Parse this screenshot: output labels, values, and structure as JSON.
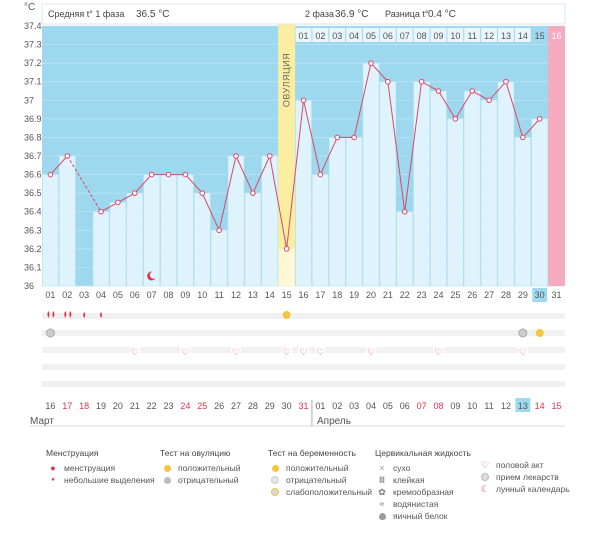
{
  "chart_data": {
    "type": "line",
    "ylabel": "°C",
    "ylim": [
      36.0,
      37.4
    ],
    "y_ticks": [
      "36",
      "36.1",
      "36.2",
      "36.3",
      "36.4",
      "36.5",
      "36.6",
      "36.7",
      "36.8",
      "36.9",
      "37",
      "37.1",
      "37.2",
      "37.3",
      "37.4"
    ],
    "cycle_days": [
      "01",
      "02",
      "03",
      "04",
      "05",
      "06",
      "07",
      "08",
      "09",
      "10",
      "11",
      "12",
      "13",
      "14",
      "15",
      "16",
      "17",
      "18",
      "19",
      "20",
      "21",
      "22",
      "23",
      "24",
      "25",
      "26",
      "27",
      "28",
      "29",
      "30",
      "31"
    ],
    "phase2_day_labels": [
      "01",
      "02",
      "03",
      "04",
      "05",
      "06",
      "07",
      "08",
      "09",
      "10",
      "11",
      "12",
      "13",
      "14",
      "15",
      "16"
    ],
    "calendar_dates": [
      "16",
      "17",
      "18",
      "19",
      "20",
      "21",
      "22",
      "23",
      "24",
      "25",
      "26",
      "27",
      "28",
      "29",
      "30",
      "31",
      "01",
      "02",
      "03",
      "04",
      "05",
      "06",
      "07",
      "08",
      "09",
      "10",
      "11",
      "12",
      "13",
      "14",
      "15"
    ],
    "weekend_dates_index": [
      1,
      2,
      8,
      9,
      15,
      22,
      23,
      29,
      30
    ],
    "temperatures": [
      36.6,
      36.7,
      null,
      36.4,
      36.45,
      36.5,
      36.6,
      36.6,
      36.6,
      36.5,
      36.3,
      36.7,
      36.5,
      36.7,
      36.2,
      37.0,
      36.6,
      36.8,
      36.8,
      37.2,
      37.1,
      36.4,
      37.1,
      37.05,
      36.9,
      37.05,
      37.0,
      37.1,
      36.8,
      36.9,
      null
    ],
    "dashed_gap": [
      1,
      3
    ],
    "ovulation_day_index": 14,
    "today_cycle_index": 29,
    "pink_day_index": 30,
    "month_labels": [
      "Март",
      "Апрель"
    ],
    "header": {
      "phase1_label": "Средняя t° 1 фаза",
      "phase1_value": "36.5 °C",
      "phase2_label": "2 фаза",
      "phase2_value": "36.9 °C",
      "diff_label": "Разница t°",
      "diff_value": "0.4 °C",
      "ovulation_label": "ОВУЛЯЦИЯ"
    },
    "markers": {
      "menstruation_heavy": [
        0,
        1
      ],
      "menstruation_light": [
        2,
        3
      ],
      "ovulation_positive": [
        14
      ],
      "ovulation_negative": [
        0,
        28
      ],
      "pregnancy_positive": [
        29
      ],
      "intercourse": [
        5,
        8,
        11,
        14,
        15,
        16,
        19,
        23,
        28
      ],
      "moon": [
        6
      ]
    },
    "colors": {
      "plot_bg": "#9ed8ee",
      "bar": "#dff3fc",
      "bar_edge": "#bfe6f5",
      "line": "#d9486a",
      "ovulation_band": "#fbeea0",
      "today": "#9fd9ef",
      "pink": "#f6aabd",
      "weekend_text": "#e0334d"
    }
  },
  "legend": {
    "menstruation": {
      "title": "Менструация",
      "items": [
        "менструация",
        "небольшие выделения"
      ]
    },
    "ovulation_test": {
      "title": "Тест на овуляцию",
      "items": [
        "положительный",
        "отрицательный"
      ]
    },
    "pregnancy_test": {
      "title": "Тест на беременность",
      "items": [
        "положительный",
        "отрицательный",
        "слабоположительный"
      ]
    },
    "cervical": {
      "title": "Цервикальная жидкость",
      "items": [
        "сухо",
        "клейкая",
        "кремообразная",
        "водянистая",
        "яичный белок"
      ]
    },
    "other": {
      "items": [
        "половой акт",
        "прием лекарств",
        "лунный календарь"
      ]
    }
  }
}
